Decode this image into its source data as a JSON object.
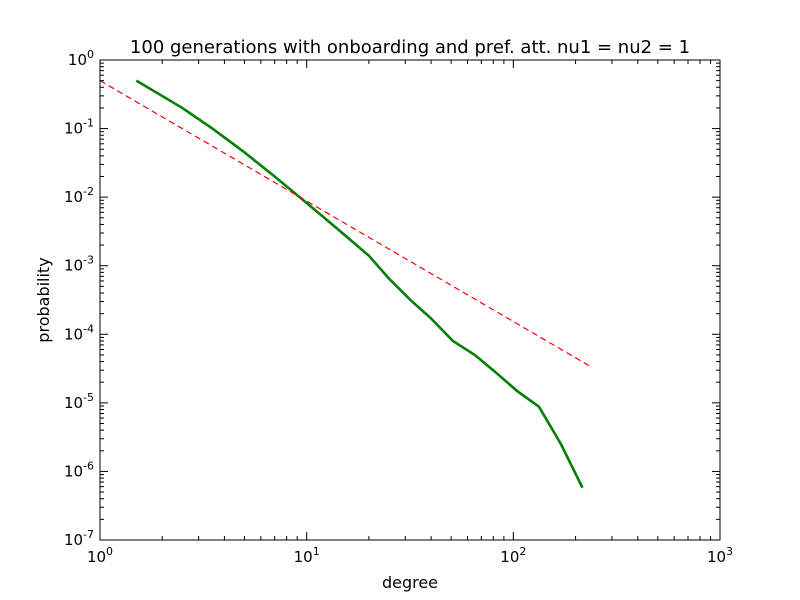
{
  "chart_data": {
    "type": "line",
    "title": "100 generations with onboarding and pref. att. nu1 = nu2 = 1",
    "xlabel": "degree",
    "ylabel": "probability",
    "x_scale": "log",
    "y_scale": "log",
    "xlim": [
      1,
      1000
    ],
    "ylim": [
      1e-07,
      1
    ],
    "x_ticks": [
      {
        "base": "10",
        "exp": "0",
        "value": 1
      },
      {
        "base": "10",
        "exp": "1",
        "value": 10
      },
      {
        "base": "10",
        "exp": "2",
        "value": 100
      },
      {
        "base": "10",
        "exp": "3",
        "value": 1000
      }
    ],
    "y_ticks": [
      {
        "base": "10",
        "exp": "0",
        "value": 1
      },
      {
        "base": "10",
        "exp": "-1",
        "value": 0.1
      },
      {
        "base": "10",
        "exp": "-2",
        "value": 0.01
      },
      {
        "base": "10",
        "exp": "-3",
        "value": 0.001
      },
      {
        "base": "10",
        "exp": "-4",
        "value": 0.0001
      },
      {
        "base": "10",
        "exp": "-5",
        "value": 1e-05
      },
      {
        "base": "10",
        "exp": "-6",
        "value": 1e-06
      },
      {
        "base": "10",
        "exp": "-7",
        "value": 1e-07
      }
    ],
    "grid": false,
    "legend": "none",
    "series": [
      {
        "color": "#008000",
        "style": "solid",
        "x": [
          1.5,
          2.5,
          3.5,
          5,
          7,
          10,
          14,
          20,
          25,
          32,
          40,
          51,
          65,
          82,
          104,
          133,
          170,
          216
        ],
        "y": [
          0.5,
          0.2,
          0.1,
          0.045,
          0.02,
          0.0082,
          0.0035,
          0.0014,
          0.00065,
          0.00031,
          0.00017,
          8e-05,
          5e-05,
          2.8e-05,
          1.5e-05,
          8.8e-06,
          2.5e-06,
          5.8e-07
        ]
      },
      {
        "color": "#ff0000",
        "style": "dashed",
        "x": [
          1,
          240
        ],
        "y": [
          0.5,
          3.3e-05
        ]
      }
    ]
  }
}
